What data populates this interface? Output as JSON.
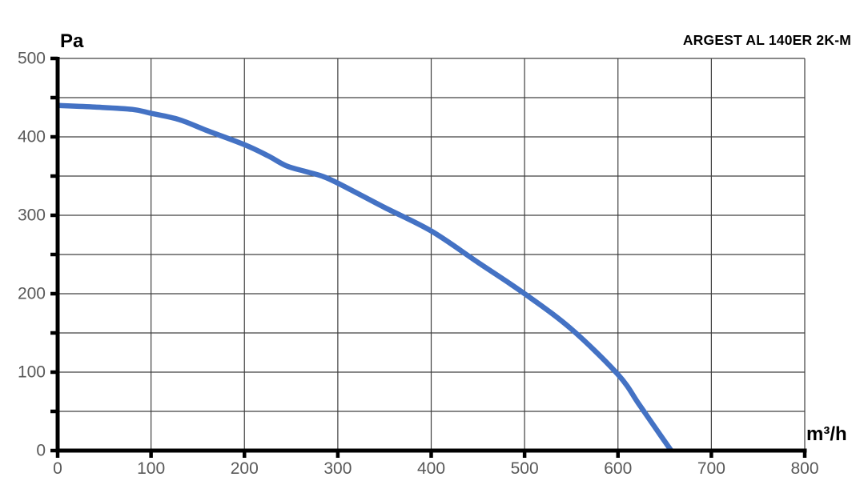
{
  "chart_data": {
    "type": "line",
    "title": "ARGEST AL 140ER 2K-M",
    "ylabel": "Pa",
    "xlabel": "m³/h",
    "xlim": [
      0,
      800
    ],
    "ylim": [
      0,
      500
    ],
    "x_tick_labels": [
      0,
      100,
      200,
      300,
      400,
      500,
      600,
      700,
      800
    ],
    "y_tick_labels": [
      0,
      100,
      200,
      300,
      400,
      500
    ],
    "x_grid_step": 100,
    "y_grid_step": 50,
    "x_tick_step": 100,
    "y_tick_step": 50,
    "grid": true,
    "legend": false,
    "series": [
      {
        "color": "#4472C4",
        "points": [
          [
            0,
            440
          ],
          [
            40,
            438
          ],
          [
            80,
            435
          ],
          [
            100,
            430
          ],
          [
            130,
            422
          ],
          [
            160,
            408
          ],
          [
            200,
            390
          ],
          [
            225,
            376
          ],
          [
            245,
            363
          ],
          [
            265,
            356
          ],
          [
            283,
            350
          ],
          [
            300,
            341
          ],
          [
            350,
            310
          ],
          [
            400,
            280
          ],
          [
            450,
            240
          ],
          [
            500,
            200
          ],
          [
            550,
            155
          ],
          [
            600,
            97
          ],
          [
            622,
            60
          ],
          [
            640,
            29
          ],
          [
            657,
            0
          ]
        ]
      }
    ],
    "colors": {
      "background": "#ffffff",
      "grid": "#404040",
      "axis": "#000000",
      "tick_label": "#595959",
      "curve": "#4472C4"
    }
  }
}
